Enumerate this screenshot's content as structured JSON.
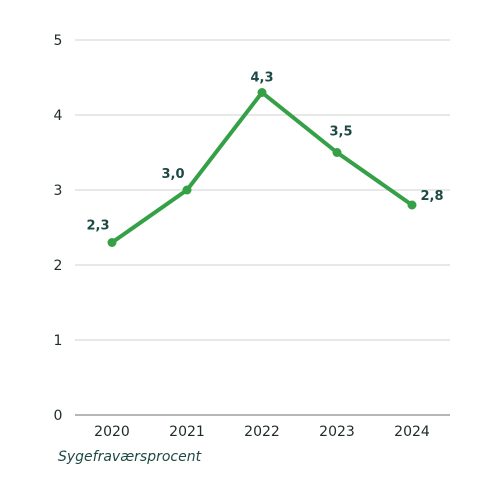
{
  "chart_data": {
    "type": "line",
    "categories": [
      "2020",
      "2021",
      "2022",
      "2023",
      "2024"
    ],
    "series": [
      {
        "name": "Sygefraværsprocent",
        "values": [
          2.3,
          3.0,
          4.3,
          3.5,
          2.8
        ],
        "color": "#35a046"
      }
    ],
    "data_labels": [
      "2,3",
      "3,0",
      "4,3",
      "3,5",
      "2,8"
    ],
    "yticks": [
      "0",
      "1",
      "2",
      "3",
      "4",
      "5"
    ],
    "ylim": [
      0,
      5
    ],
    "grid": true,
    "legend_position": "bottom-left"
  }
}
